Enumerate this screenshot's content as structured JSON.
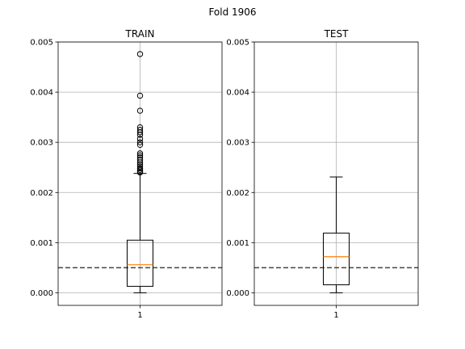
{
  "figure": {
    "title": "Fold 1906"
  },
  "chart_data": [
    {
      "type": "box",
      "title": "TRAIN",
      "xlabel": "",
      "ylabel": "",
      "ylim": [
        -0.00025,
        0.005
      ],
      "yticks": [
        0.0,
        0.001,
        0.002,
        0.003,
        0.004,
        0.005
      ],
      "ytick_labels": [
        "0.000",
        "0.001",
        "0.002",
        "0.003",
        "0.004",
        "0.005"
      ],
      "categories": [
        "1"
      ],
      "box": {
        "whisker_low": 0.0,
        "q1": 0.00013,
        "median": 0.00056,
        "q3": 0.00105,
        "whisker_high": 0.00238
      },
      "outliers": [
        0.0024,
        0.00242,
        0.00245,
        0.00248,
        0.00252,
        0.00256,
        0.0026,
        0.00265,
        0.0027,
        0.00274,
        0.00278,
        0.00295,
        0.003,
        0.00307,
        0.00315,
        0.0032,
        0.00325,
        0.0033,
        0.00363,
        0.00393,
        0.00476
      ],
      "reference_line": 0.0005,
      "grid": true,
      "colors": {
        "median": "#ff7f0e",
        "reference": "#444444",
        "box": "#000000"
      }
    },
    {
      "type": "box",
      "title": "TEST",
      "xlabel": "",
      "ylabel": "",
      "ylim": [
        -0.00025,
        0.005
      ],
      "yticks": [
        0.0,
        0.001,
        0.002,
        0.003,
        0.004,
        0.005
      ],
      "ytick_labels": [
        "0.000",
        "0.001",
        "0.002",
        "0.003",
        "0.004",
        "0.005"
      ],
      "categories": [
        "1"
      ],
      "box": {
        "whisker_low": 0.0,
        "q1": 0.00016,
        "median": 0.00072,
        "q3": 0.00119,
        "whisker_high": 0.00231
      },
      "outliers": [],
      "reference_line": 0.0005,
      "grid": true,
      "colors": {
        "median": "#ff7f0e",
        "reference": "#444444",
        "box": "#000000"
      }
    }
  ]
}
